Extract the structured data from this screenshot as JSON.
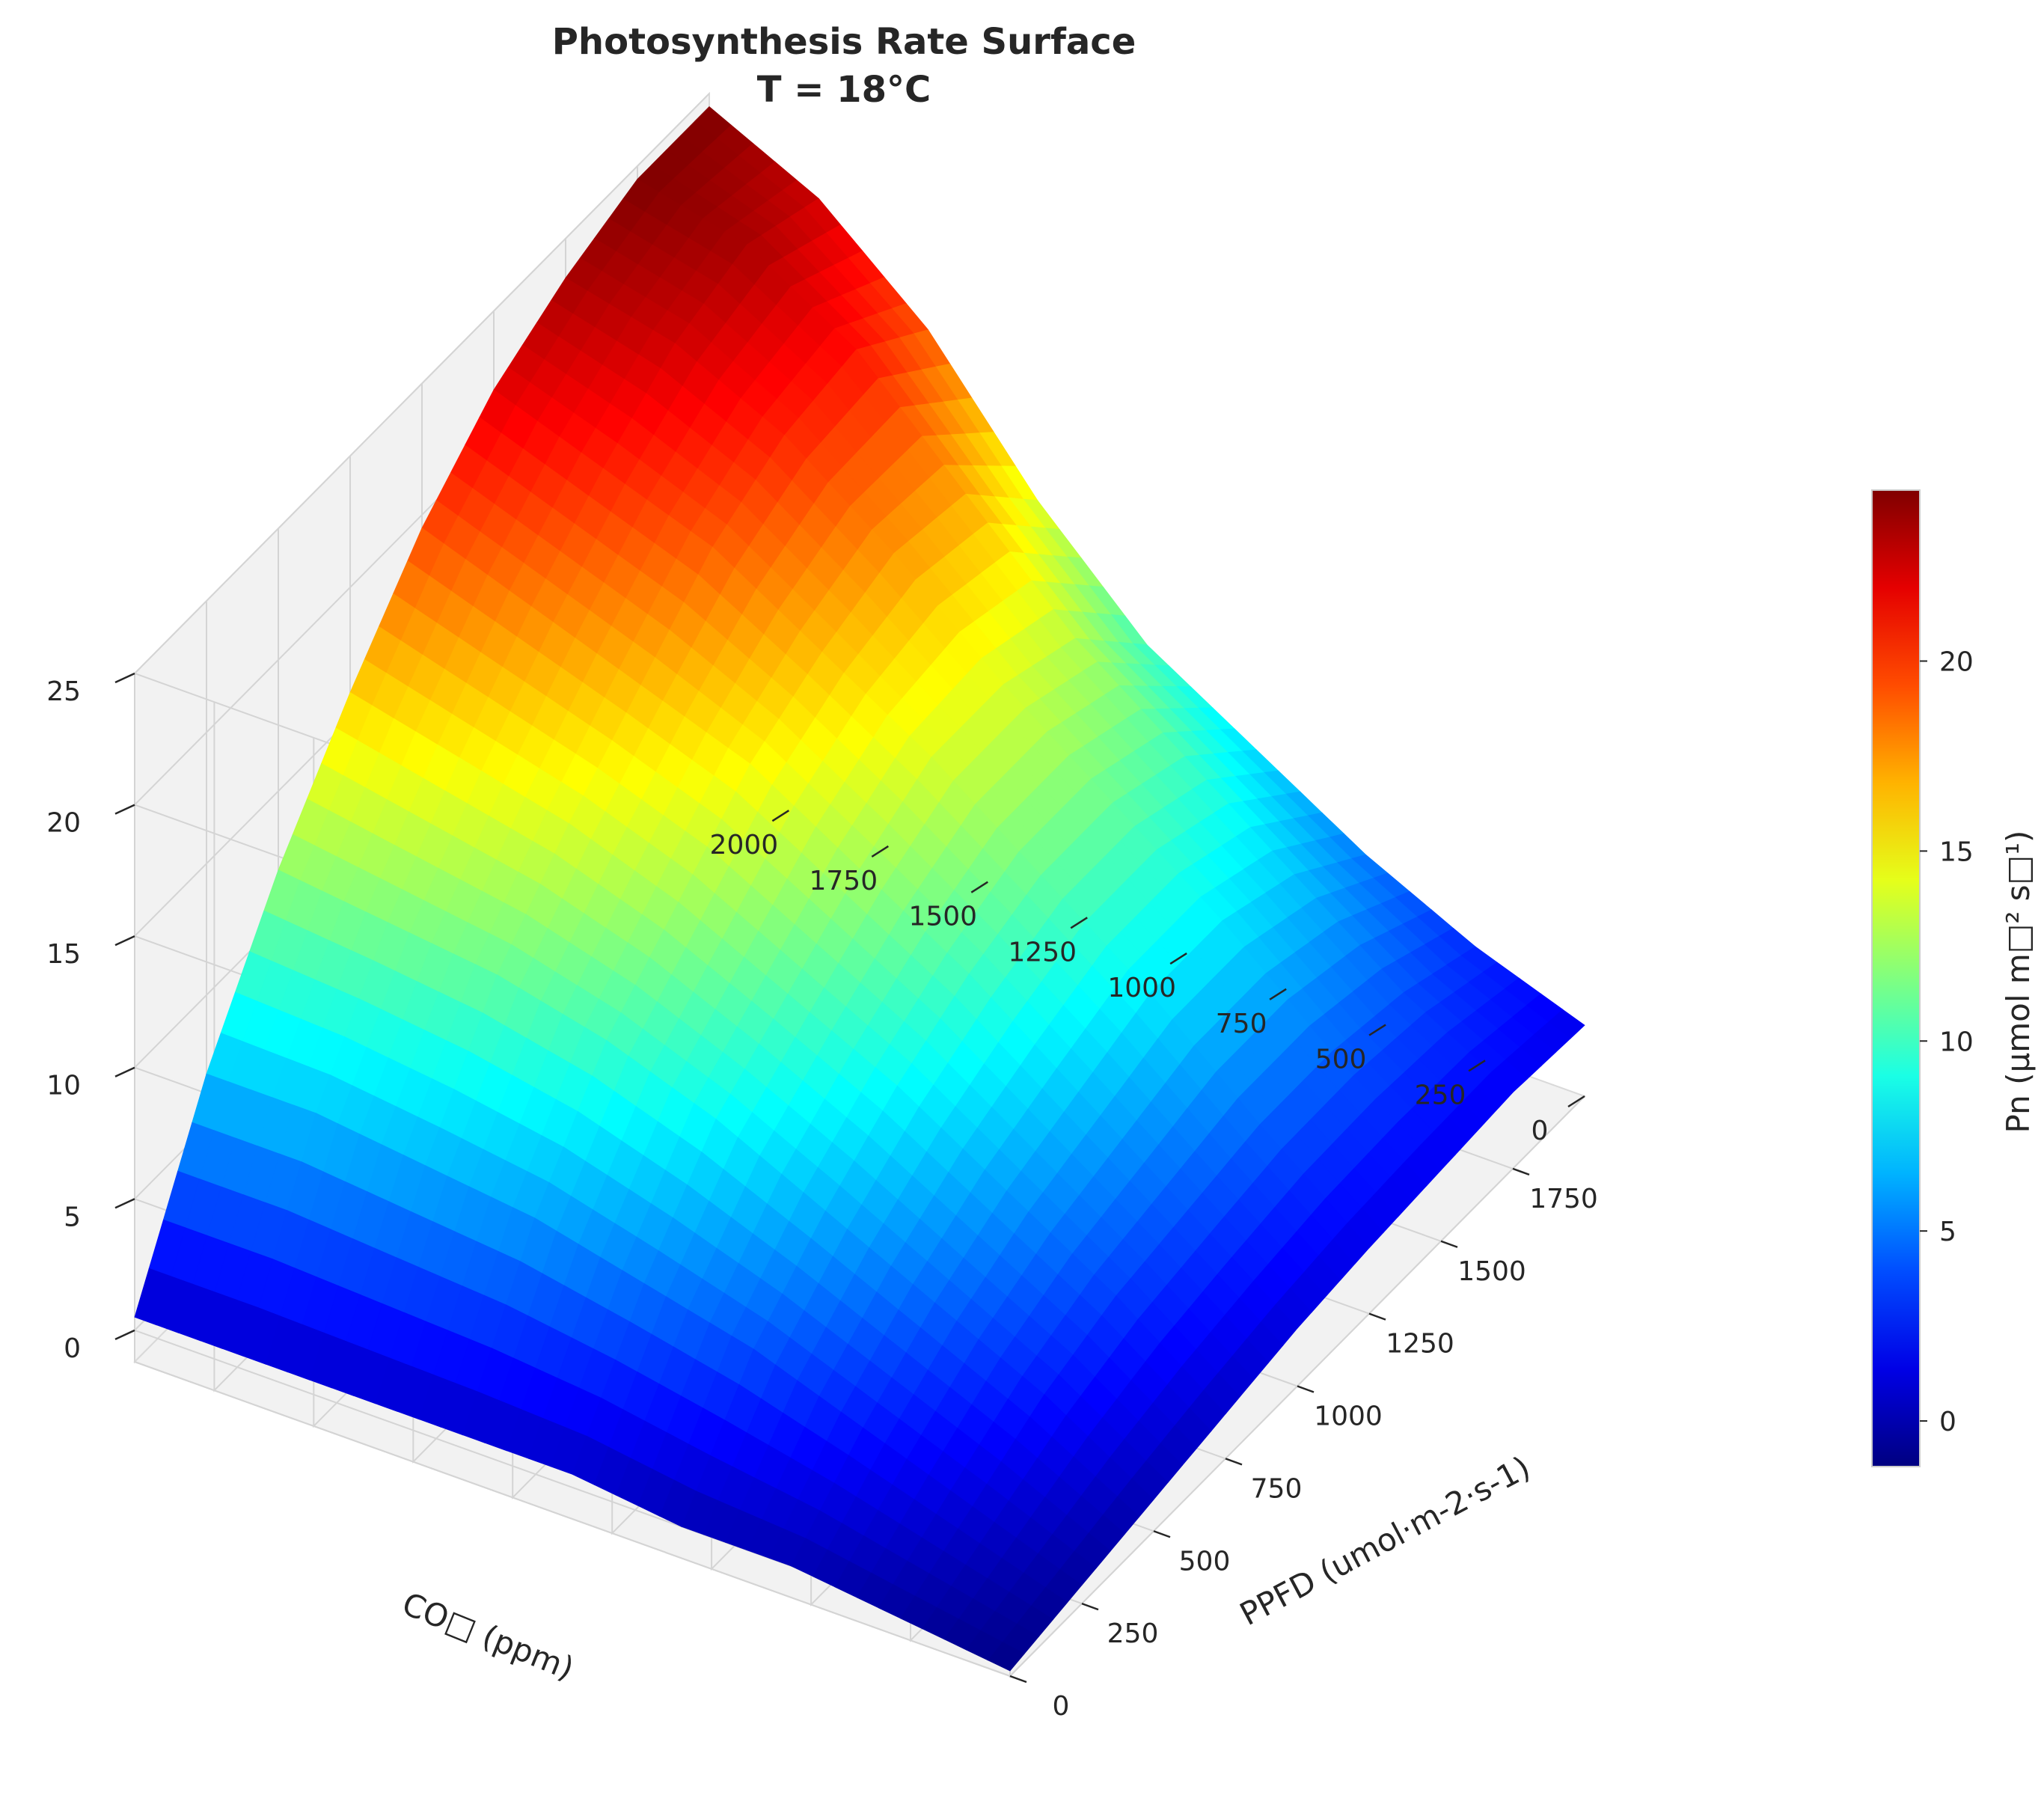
{
  "chart_data": {
    "type": "surface3d",
    "title": "Photosynthesis Rate Surface",
    "subtitle": "T = 18°C",
    "xlabel": "PPFD (umol·m-2·s-1)",
    "ylabel": "CO□ (ppm)",
    "zlabel": "",
    "x_range": [
      0,
      2000
    ],
    "y_range": [
      0,
      2200
    ],
    "z_range": [
      -1.2,
      25
    ],
    "x_ticks": [
      0,
      250,
      500,
      750,
      1000,
      1250,
      1500,
      1750
    ],
    "y_ticks": [
      0,
      250,
      500,
      750,
      1000,
      1250,
      1500,
      1750,
      2000
    ],
    "z_ticks": [
      0,
      5,
      10,
      15,
      20,
      25
    ],
    "x_tick_labels": [
      "0",
      "250",
      "500",
      "750",
      "1000",
      "1250",
      "1500",
      "1750"
    ],
    "y_tick_labels": [
      "0",
      "250",
      "500",
      "750",
      "1000",
      "1250",
      "1500",
      "1750",
      "2000"
    ],
    "z_tick_labels": [
      "0",
      "5",
      "10",
      "15",
      "20",
      "25"
    ],
    "surface": {
      "x": [
        0,
        250,
        500,
        750,
        1000,
        1250,
        1500,
        1750,
        2000
      ],
      "y": [
        0,
        275,
        550,
        825,
        1100,
        1375,
        1650,
        1925,
        2200
      ],
      "z": [
        [
          -1.0,
          -0.5,
          0.0,
          0.5,
          1.0,
          1.3,
          1.5,
          1.7,
          1.5
        ],
        [
          -0.5,
          1.0,
          2.5,
          3.5,
          4.0,
          4.5,
          4.5,
          4.0,
          3.0
        ],
        [
          0.0,
          2.5,
          4.5,
          6.0,
          7.0,
          8.0,
          8.0,
          7.0,
          5.0
        ],
        [
          0.0,
          4.0,
          6.5,
          8.5,
          10.0,
          11.0,
          11.0,
          10.0,
          7.5
        ],
        [
          0.5,
          5.0,
          8.5,
          10.5,
          12.5,
          14.0,
          14.0,
          13.0,
          10.0
        ],
        [
          0.5,
          6.0,
          10.0,
          12.5,
          15.0,
          16.5,
          17.5,
          17.0,
          14.0
        ],
        [
          0.5,
          6.5,
          11.0,
          14.0,
          16.5,
          19.0,
          20.5,
          21.0,
          19.0
        ],
        [
          0.5,
          7.0,
          11.5,
          15.0,
          18.0,
          20.5,
          22.5,
          23.5,
          22.5
        ],
        [
          0.5,
          7.0,
          12.0,
          16.0,
          19.5,
          22.0,
          23.5,
          24.5,
          24.5
        ]
      ]
    },
    "colormap": "jet",
    "colorbar": {
      "label": "Pn (μmol m□² s□¹)",
      "range": [
        -1.2,
        24.5
      ],
      "ticks": [
        0,
        5,
        10,
        15,
        20
      ],
      "tick_labels": [
        "0",
        "5",
        "10",
        "15",
        "20"
      ]
    },
    "grid": true
  }
}
